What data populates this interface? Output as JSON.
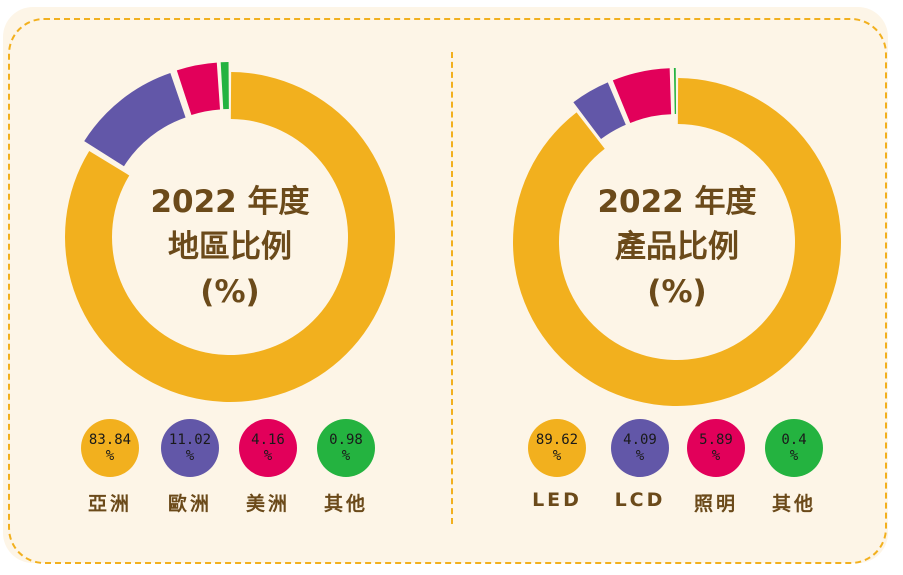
{
  "colors": {
    "background": "#fdf5e7",
    "border": "#f2b01e",
    "text": "#6b4a1a"
  },
  "chart_data": [
    {
      "type": "pie",
      "variant": "donut",
      "title_lines": [
        "2022 年度",
        "地區比例",
        "(%)"
      ],
      "categories": [
        "亞洲",
        "歐洲",
        "美洲",
        "其他"
      ],
      "values": [
        83.84,
        11.02,
        4.16,
        0.98
      ],
      "value_labels": [
        "83.84",
        "11.02",
        "4.16",
        "0.98"
      ],
      "unit": "%",
      "colors": [
        "#f2b01e",
        "#6257a8",
        "#e2005a",
        "#24b340"
      ],
      "start": "top",
      "direction": "clockwise",
      "exploded": [
        false,
        true,
        true,
        true
      ],
      "legend": "bottom"
    },
    {
      "type": "pie",
      "variant": "donut",
      "title_lines": [
        "2022 年度",
        "產品比例",
        "(%)"
      ],
      "categories": [
        "LED",
        "LCD",
        "照明",
        "其他"
      ],
      "values": [
        89.62,
        4.09,
        5.89,
        0.4
      ],
      "value_labels": [
        "89.62",
        "4.09",
        "5.89",
        "0.4"
      ],
      "unit": "%",
      "colors": [
        "#f2b01e",
        "#6257a8",
        "#e2005a",
        "#24b340"
      ],
      "start": "top",
      "direction": "clockwise",
      "exploded": [
        false,
        true,
        true,
        true
      ],
      "legend": "bottom"
    }
  ]
}
